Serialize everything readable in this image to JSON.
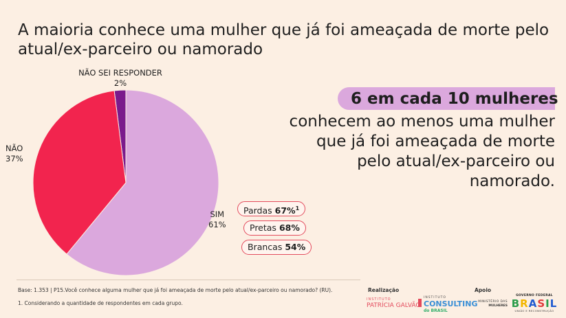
{
  "title": "A maioria conhece uma mulher que já foi ameaçada de morte pelo atual/ex-parceiro ou namorado",
  "chart_data": {
    "type": "pie",
    "slices": [
      {
        "name": "SIM",
        "value": 61,
        "value_label": "61%",
        "color": "#dba8dd"
      },
      {
        "name": "NÃO",
        "value": 37,
        "value_label": "37%",
        "color": "#f2244e"
      },
      {
        "name": "NÃO SEI RESPONDER",
        "value": 2,
        "value_label": "2%",
        "color": "#7b1a8c"
      }
    ]
  },
  "highlight": "6 em cada 10 mulheres",
  "callout_lines": [
    "conhecem ao menos uma mulher",
    "que já foi ameaçada de morte",
    "pelo atual/ex-parceiro ou",
    "namorado."
  ],
  "breakdown": [
    {
      "label": "Pardas",
      "value": "67%",
      "footnote_mark": "1"
    },
    {
      "label": "Pretas",
      "value": "68%"
    },
    {
      "label": "Brancas",
      "value": "54%"
    }
  ],
  "footnotes": {
    "base": "Base: 1.353 | P15.Você conhece alguma mulher que já foi ameaçada de morte pelo atual/ex-parceiro ou namorado? (RU).",
    "note1": "1. Considerando a quantidade de respondentes em cada grupo."
  },
  "credits": {
    "realizacao_label": "Realização",
    "apoio_label": "Apoio",
    "logo_pg_small": "INSTITUTO",
    "logo_pg_big": "PATRÍCIA GALVÃO",
    "logo_cb_small": "INSTITUTO",
    "logo_cb_big": "CONSULTING",
    "logo_cb_sub": "do BRASIL",
    "logo_mm_line1": "MINISTÉRIO DAS",
    "logo_mm_line2": "MULHERES",
    "logo_gf_top": "GOVERNO FEDERAL",
    "logo_gf_word": "BRASIL",
    "logo_gf_bottom": "UNIÃO E RECONSTRUÇÃO"
  }
}
